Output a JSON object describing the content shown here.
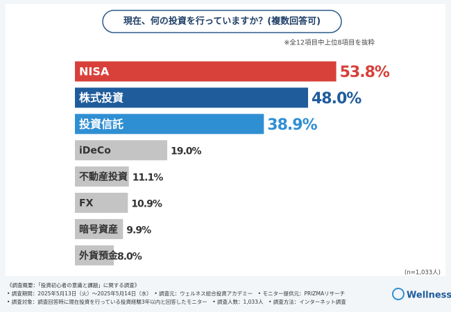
{
  "chart_data": {
    "type": "hbar",
    "title": "現在、何の投資を行っていますか？(複数回答可)",
    "note": "※全12項目中上位8項目を抜粋",
    "categories": [
      "NISA",
      "株式投資",
      "投資信託",
      "iDeCo",
      "不動産投資",
      "FX",
      "暗号資産",
      "外貨預金"
    ],
    "values": [
      53.8,
      48.0,
      38.9,
      19.0,
      11.1,
      10.9,
      9.9,
      8.0
    ],
    "value_labels": [
      "53.8%",
      "48.0%",
      "38.9%",
      "19.0%",
      "11.1%",
      "10.9%",
      "9.9%",
      "8.0%"
    ],
    "colors": [
      "#d8403a",
      "#1f5c9c",
      "#2f8fd3",
      "#c4c4c4",
      "#c4c4c4",
      "#c4c4c4",
      "#c4c4c4",
      "#c4c4c4"
    ],
    "sample_size": "(n=1,033人)",
    "footnotes": [
      "《調査概要：「投資初心者の意識と課題」に関する調査》",
      "• 調査期間：2025年5月13日（火）～2025年5月14日（水）　• 調査元：ウェルネス総合投資アカデミー　• モニター提供元：PRIZMAリサーチ",
      "• 調査対象：調査回答時に現在投資を行っている投資経験3年以内と回答したモニター　• 調査人数：1,033人　• 調査方法：インターネット調査"
    ],
    "logo": "Wellness"
  }
}
